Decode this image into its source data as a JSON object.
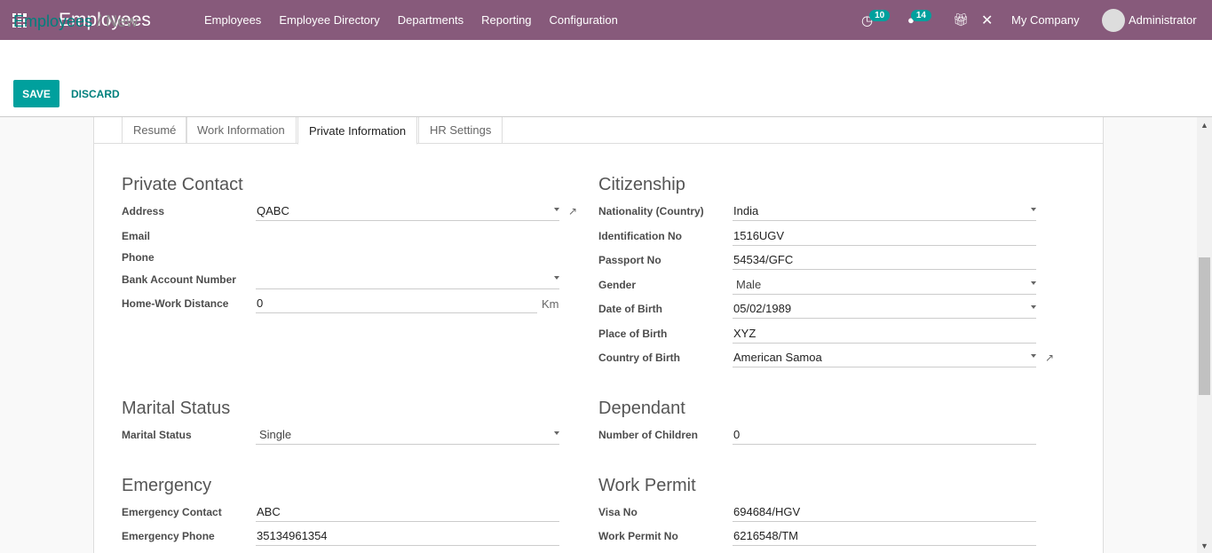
{
  "nav": {
    "app_title": "Employees",
    "menu": [
      "Employees",
      "Employee Directory",
      "Departments",
      "Reporting",
      "Configuration"
    ],
    "activity_count": "10",
    "message_count": "14",
    "company": "My Company",
    "user": "Administrator"
  },
  "breadcrumb": {
    "parent": "Employees",
    "separator": "/",
    "current": "New"
  },
  "buttons": {
    "save": "SAVE",
    "discard": "DISCARD"
  },
  "tabs": [
    "Resumé",
    "Work Information",
    "Private Information",
    "HR Settings"
  ],
  "active_tab": "Private Information",
  "private_contact": {
    "title": "Private Contact",
    "address_label": "Address",
    "address": "QABC",
    "email_label": "Email",
    "phone_label": "Phone",
    "bank_label": "Bank Account Number",
    "bank": "",
    "distance_label": "Home-Work Distance",
    "distance": "0",
    "distance_unit": "Km"
  },
  "citizenship": {
    "title": "Citizenship",
    "nationality_label": "Nationality (Country)",
    "nationality": "India",
    "id_label": "Identification No",
    "id": "1516UGV",
    "passport_label": "Passport No",
    "passport": "54534/GFC",
    "gender_label": "Gender",
    "gender": "Male",
    "dob_label": "Date of Birth",
    "dob": "05/02/1989",
    "pob_label": "Place of Birth",
    "pob": "XYZ",
    "cob_label": "Country of Birth",
    "cob": "American Samoa"
  },
  "marital": {
    "title": "Marital Status",
    "label": "Marital Status",
    "value": "Single"
  },
  "dependant": {
    "title": "Dependant",
    "label": "Number of Children",
    "value": "0"
  },
  "emergency": {
    "title": "Emergency",
    "contact_label": "Emergency Contact",
    "contact": "ABC",
    "phone_label": "Emergency Phone",
    "phone": "35134961354"
  },
  "work_permit": {
    "title": "Work Permit",
    "visa_label": "Visa No",
    "visa": "694684/HGV",
    "permit_label": "Work Permit No",
    "permit": "6216548/TM"
  },
  "colors": {
    "brand": "#875a7b",
    "accent": "#00a09d"
  }
}
